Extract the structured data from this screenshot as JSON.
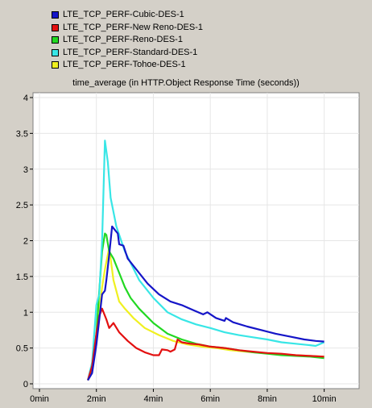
{
  "chart_data": {
    "type": "line",
    "title": "time_average (in HTTP.Object Response Time (seconds))",
    "xlabel": "",
    "ylabel": "",
    "xlim": [
      0,
      11
    ],
    "ylim": [
      0,
      4
    ],
    "x_ticks": [
      0,
      2,
      4,
      6,
      8,
      10
    ],
    "x_tick_labels": [
      "0min",
      "2min",
      "4min",
      "6min",
      "8min",
      "10min"
    ],
    "y_ticks": [
      0,
      0.5,
      1,
      1.5,
      2,
      2.5,
      3,
      3.5,
      4
    ],
    "y_tick_labels": [
      "0",
      "0.5",
      "1",
      "1.5",
      "2",
      "2.5",
      "3",
      "3.5",
      "4"
    ],
    "grid": true,
    "legend_position": "top-left",
    "series": [
      {
        "name": "LTE_TCP_PERF-Cubic-DES-1",
        "color": "#1515c8",
        "x": [
          1.7,
          1.85,
          2.0,
          2.1,
          2.2,
          2.3,
          2.35,
          2.45,
          2.55,
          2.65,
          2.75,
          2.8,
          2.95,
          3.1,
          3.4,
          3.8,
          4.2,
          4.6,
          5.0,
          5.4,
          5.75,
          5.9,
          6.2,
          6.5,
          6.55,
          6.8,
          7.3,
          7.8,
          8.3,
          8.8,
          9.3,
          9.7,
          10.0
        ],
        "y": [
          0.05,
          0.15,
          0.55,
          0.9,
          1.25,
          1.3,
          1.45,
          1.8,
          2.2,
          2.15,
          2.1,
          1.95,
          1.93,
          1.75,
          1.6,
          1.4,
          1.25,
          1.15,
          1.1,
          1.03,
          0.97,
          1.0,
          0.92,
          0.88,
          0.92,
          0.86,
          0.8,
          0.75,
          0.7,
          0.66,
          0.62,
          0.6,
          0.59
        ]
      },
      {
        "name": "LTE_TCP_PERF-New Reno-DES-1",
        "color": "#e31010",
        "x": [
          1.7,
          1.85,
          2.0,
          2.1,
          2.2,
          2.35,
          2.45,
          2.6,
          2.8,
          3.1,
          3.4,
          3.7,
          4.0,
          4.2,
          4.3,
          4.5,
          4.6,
          4.75,
          4.85,
          5.0,
          5.3,
          5.6,
          6.0,
          6.5,
          7.0,
          7.5,
          8.0,
          8.5,
          9.0,
          9.5,
          10.0
        ],
        "y": [
          0.05,
          0.25,
          0.7,
          0.95,
          1.05,
          0.9,
          0.78,
          0.85,
          0.72,
          0.6,
          0.5,
          0.44,
          0.4,
          0.4,
          0.48,
          0.47,
          0.45,
          0.48,
          0.62,
          0.58,
          0.56,
          0.55,
          0.52,
          0.5,
          0.47,
          0.45,
          0.43,
          0.42,
          0.4,
          0.39,
          0.38
        ]
      },
      {
        "name": "LTE_TCP_PERF-Reno-DES-1",
        "color": "#22d822",
        "x": [
          1.7,
          1.85,
          2.0,
          2.1,
          2.2,
          2.3,
          2.35,
          2.45,
          2.6,
          2.8,
          3.0,
          3.2,
          3.5,
          4.0,
          4.5,
          5.0,
          5.5,
          6.0,
          6.5,
          7.0,
          7.5,
          8.0,
          8.5,
          9.0,
          9.5,
          10.0
        ],
        "y": [
          0.05,
          0.2,
          0.7,
          1.3,
          1.85,
          2.1,
          2.08,
          1.85,
          1.75,
          1.55,
          1.35,
          1.2,
          1.05,
          0.85,
          0.7,
          0.62,
          0.56,
          0.52,
          0.5,
          0.47,
          0.44,
          0.42,
          0.4,
          0.39,
          0.38,
          0.36
        ]
      },
      {
        "name": "LTE_TCP_PERF-Standard-DES-1",
        "color": "#38e6e6",
        "x": [
          1.7,
          1.85,
          2.0,
          2.1,
          2.2,
          2.3,
          2.4,
          2.5,
          2.7,
          3.0,
          3.5,
          4.0,
          4.5,
          5.0,
          5.5,
          6.0,
          6.5,
          7.0,
          7.5,
          8.0,
          8.5,
          9.0,
          9.5,
          9.7,
          10.0
        ],
        "y": [
          0.05,
          0.3,
          1.1,
          1.25,
          2.0,
          3.4,
          3.1,
          2.6,
          2.2,
          1.85,
          1.45,
          1.2,
          1.0,
          0.9,
          0.83,
          0.78,
          0.72,
          0.68,
          0.65,
          0.62,
          0.58,
          0.56,
          0.54,
          0.53,
          0.58
        ]
      },
      {
        "name": "LTE_TCP_PERF-Tohoe-DES-1",
        "color": "#f0f020",
        "x": [
          1.7,
          1.85,
          2.0,
          2.1,
          2.2,
          2.3,
          2.45,
          2.6,
          2.8,
          3.0,
          3.3,
          3.7,
          4.2,
          4.7,
          5.2,
          5.7,
          6.2,
          6.7,
          7.5,
          8.5,
          10.0
        ],
        "y": [
          0.05,
          0.2,
          0.6,
          1.0,
          1.35,
          1.6,
          1.9,
          1.45,
          1.15,
          1.05,
          0.92,
          0.78,
          0.68,
          0.6,
          0.55,
          0.52,
          0.5,
          0.47,
          0.44,
          0.41,
          0.38
        ]
      }
    ]
  }
}
